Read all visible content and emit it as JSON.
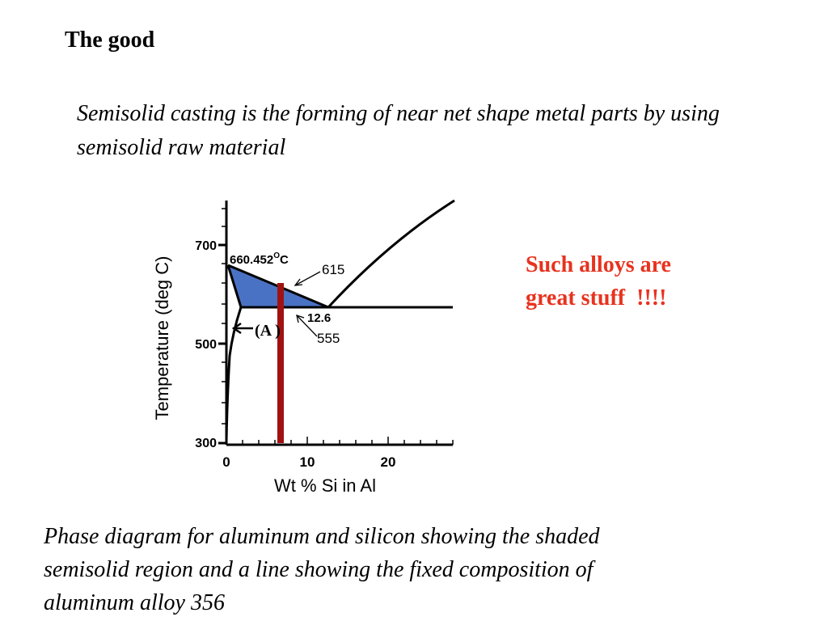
{
  "slide": {
    "title": "The good",
    "intro": "Semisolid casting is the forming of near net shape metal parts by using semisolid raw material",
    "callout_lines": [
      "Such alloys are",
      "great stuff  !!!!"
    ],
    "callout_color": "#e8321e",
    "caption_lines": [
      "Phase diagram for aluminum and silicon showing the shaded",
      "semisolid region and a line showing the fixed composition of",
      "aluminum alloy 356"
    ]
  },
  "diagram": {
    "ylabel": "Temperature (deg C)",
    "xlabel": "Wt % Si in Al",
    "y_ticks": [
      "700",
      "500",
      "300"
    ],
    "x_ticks": [
      "0",
      "10",
      "20"
    ],
    "melting_point_label": "660.452",
    "degree_symbol": "O",
    "celsius_symbol": "C",
    "liquidus_label": "615",
    "eutectic_comp_label": "12.6",
    "solidus_label": "555",
    "phase_label": "(A",
    "phase_label_close": ")",
    "semisolid_color": "#4a72c4",
    "alloy_line_color": "#a01212"
  }
}
